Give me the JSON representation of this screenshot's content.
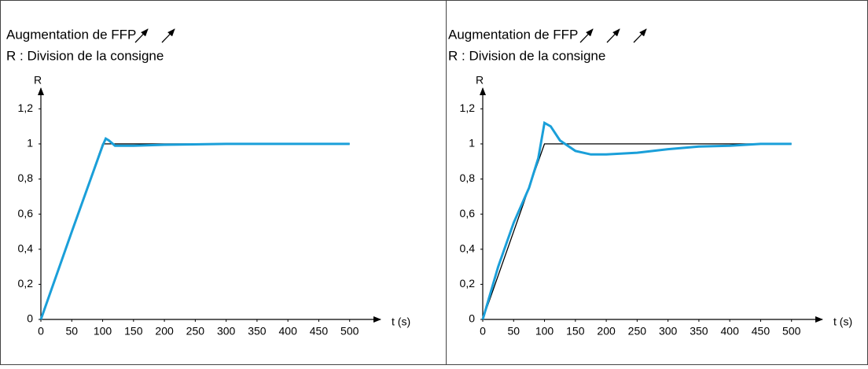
{
  "chart_data": [
    {
      "type": "line",
      "title": "Augmentation de FFP",
      "subtitle": "R : Division de la consigne",
      "ylabel": "R",
      "xlabel": "t (s)",
      "xlim": [
        0,
        550
      ],
      "ylim": [
        0,
        1.3
      ],
      "xticks": [
        0,
        50,
        100,
        150,
        200,
        250,
        300,
        350,
        400,
        450,
        500
      ],
      "yticks": [
        0,
        {
          "value": 0.2,
          "label": "0,2"
        },
        {
          "value": 0.4,
          "label": "0,4"
        },
        {
          "value": 0.6,
          "label": "0,6"
        },
        {
          "value": 0.8,
          "label": "0,8"
        },
        1,
        {
          "value": 1.2,
          "label": "1,2"
        }
      ],
      "series": [
        {
          "color": "#000000",
          "x": [
            0,
            100,
            500
          ],
          "values": [
            0,
            1,
            1
          ]
        },
        {
          "color": "#1a9fd9",
          "x": [
            0,
            50,
            100,
            105,
            110,
            120,
            150,
            200,
            300,
            400,
            500
          ],
          "values": [
            0,
            0.5,
            0.99,
            1.03,
            1.02,
            0.99,
            0.99,
            0.995,
            1.0,
            1.0,
            1.0
          ]
        }
      ]
    },
    {
      "type": "line",
      "title": "Augmentation de FFP",
      "subtitle": "R : Division de la consigne",
      "ylabel": "R",
      "xlabel": "t (s)",
      "xlim": [
        0,
        550
      ],
      "ylim": [
        0,
        1.3
      ],
      "xticks": [
        0,
        50,
        100,
        150,
        200,
        250,
        300,
        350,
        400,
        450,
        500
      ],
      "yticks": [
        0,
        {
          "value": 0.2,
          "label": "0,2"
        },
        {
          "value": 0.4,
          "label": "0,4"
        },
        {
          "value": 0.6,
          "label": "0,6"
        },
        {
          "value": 0.8,
          "label": "0,8"
        },
        1,
        {
          "value": 1.2,
          "label": "1,2"
        }
      ],
      "series": [
        {
          "color": "#000000",
          "x": [
            0,
            100,
            500
          ],
          "values": [
            0,
            1,
            1
          ]
        },
        {
          "color": "#1a9fd9",
          "x": [
            0,
            25,
            50,
            75,
            90,
            100,
            110,
            125,
            150,
            175,
            200,
            250,
            300,
            350,
            400,
            450,
            500
          ],
          "values": [
            0,
            0.3,
            0.55,
            0.75,
            0.92,
            1.12,
            1.1,
            1.02,
            0.96,
            0.94,
            0.94,
            0.95,
            0.97,
            0.985,
            0.99,
            1.0,
            1.0
          ]
        }
      ]
    }
  ]
}
